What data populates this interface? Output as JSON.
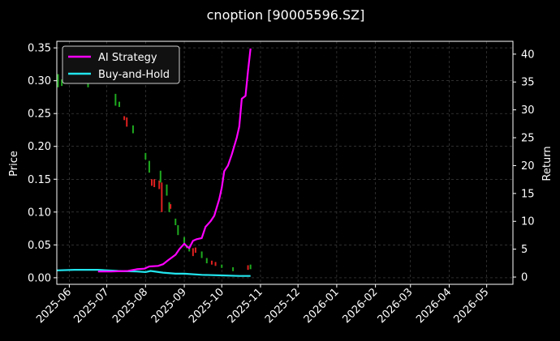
{
  "chart_data": {
    "type": "line",
    "title": "cnoption [90005596.SZ]",
    "ylabel_left": "Price",
    "ylabel_right": "Return",
    "xlim": [
      "2025-05-22",
      "2026-05-22"
    ],
    "ylim_left": [
      -0.01,
      0.36
    ],
    "ylim_right": [
      -1.3,
      42.3
    ],
    "grid": true,
    "legend_placement": "top-left",
    "x_ticks": [
      "2025-06",
      "2025-07",
      "2025-08",
      "2025-09",
      "2025-10",
      "2025-11",
      "2025-12",
      "2026-01",
      "2026-02",
      "2026-03",
      "2026-04",
      "2026-05"
    ],
    "y_ticks_left": [
      "0.00",
      "0.05",
      "0.10",
      "0.15",
      "0.20",
      "0.25",
      "0.30",
      "0.35"
    ],
    "y_ticks_right": [
      "0",
      "5",
      "10",
      "15",
      "20",
      "25",
      "30",
      "35",
      "40"
    ],
    "colors": {
      "background": "#000000",
      "ai_strategy": "#ff00ff",
      "buy_and_hold": "#22e5ee",
      "candle_up": "#1faa1f",
      "candle_down": "#e02020",
      "grid": "#4a4a4a"
    },
    "series": [
      {
        "name": "AI Strategy",
        "axis": "right",
        "points": [
          [
            "2025-06-24",
            1.0
          ],
          [
            "2025-07-04",
            1.0
          ],
          [
            "2025-07-18",
            1.1
          ],
          [
            "2025-07-25",
            1.4
          ],
          [
            "2025-07-31",
            1.5
          ],
          [
            "2025-08-04",
            1.9
          ],
          [
            "2025-08-11",
            2.0
          ],
          [
            "2025-08-15",
            2.3
          ],
          [
            "2025-08-19",
            3.0
          ],
          [
            "2025-08-25",
            4.0
          ],
          [
            "2025-08-28",
            5.0
          ],
          [
            "2025-09-01",
            6.0
          ],
          [
            "2025-09-03",
            5.5
          ],
          [
            "2025-09-05",
            5.2
          ],
          [
            "2025-09-08",
            6.5
          ],
          [
            "2025-09-11",
            6.8
          ],
          [
            "2025-09-15",
            7.0
          ],
          [
            "2025-09-18",
            9.0
          ],
          [
            "2025-09-22",
            10.0
          ],
          [
            "2025-09-25",
            11.0
          ],
          [
            "2025-09-29",
            14.0
          ],
          [
            "2025-10-01",
            16.0
          ],
          [
            "2025-10-03",
            19.0
          ],
          [
            "2025-10-06",
            20.0
          ],
          [
            "2025-10-09",
            22.0
          ],
          [
            "2025-10-13",
            25.0
          ],
          [
            "2025-10-15",
            27.0
          ],
          [
            "2025-10-17",
            32.0
          ],
          [
            "2025-10-20",
            32.5
          ],
          [
            "2025-10-22",
            37.0
          ],
          [
            "2025-10-24",
            41.0
          ]
        ]
      },
      {
        "name": "Buy-and-Hold",
        "axis": "right",
        "points": [
          [
            "2025-05-22",
            1.2
          ],
          [
            "2025-06-05",
            1.3
          ],
          [
            "2025-06-15",
            1.3
          ],
          [
            "2025-06-24",
            1.3
          ],
          [
            "2025-07-10",
            1.1
          ],
          [
            "2025-07-25",
            1.0
          ],
          [
            "2025-08-01",
            0.9
          ],
          [
            "2025-08-05",
            1.1
          ],
          [
            "2025-08-15",
            0.8
          ],
          [
            "2025-08-25",
            0.6
          ],
          [
            "2025-09-01",
            0.6
          ],
          [
            "2025-09-15",
            0.4
          ],
          [
            "2025-10-01",
            0.3
          ],
          [
            "2025-10-15",
            0.2
          ],
          [
            "2025-10-24",
            0.2
          ]
        ]
      }
    ],
    "candles": [
      {
        "date": "2025-05-23",
        "low": 0.29,
        "high": 0.31,
        "dir": "up"
      },
      {
        "date": "2025-05-26",
        "low": 0.292,
        "high": 0.302,
        "dir": "up"
      },
      {
        "date": "2025-06-16",
        "low": 0.29,
        "high": 0.296,
        "dir": "up"
      },
      {
        "date": "2025-07-08",
        "low": 0.262,
        "high": 0.28,
        "dir": "up"
      },
      {
        "date": "2025-07-11",
        "low": 0.26,
        "high": 0.268,
        "dir": "up"
      },
      {
        "date": "2025-07-15",
        "low": 0.24,
        "high": 0.246,
        "dir": "down"
      },
      {
        "date": "2025-07-17",
        "low": 0.23,
        "high": 0.244,
        "dir": "down"
      },
      {
        "date": "2025-07-22",
        "low": 0.22,
        "high": 0.232,
        "dir": "up"
      },
      {
        "date": "2025-08-01",
        "low": 0.18,
        "high": 0.19,
        "dir": "up"
      },
      {
        "date": "2025-08-04",
        "low": 0.16,
        "high": 0.178,
        "dir": "up"
      },
      {
        "date": "2025-08-06",
        "low": 0.14,
        "high": 0.15,
        "dir": "down"
      },
      {
        "date": "2025-08-08",
        "low": 0.138,
        "high": 0.15,
        "dir": "down"
      },
      {
        "date": "2025-08-12",
        "low": 0.135,
        "high": 0.148,
        "dir": "down"
      },
      {
        "date": "2025-08-13",
        "low": 0.145,
        "high": 0.163,
        "dir": "up"
      },
      {
        "date": "2025-08-14",
        "low": 0.1,
        "high": 0.145,
        "dir": "down"
      },
      {
        "date": "2025-08-18",
        "low": 0.125,
        "high": 0.142,
        "dir": "up"
      },
      {
        "date": "2025-08-20",
        "low": 0.1,
        "high": 0.115,
        "dir": "up"
      },
      {
        "date": "2025-08-21",
        "low": 0.105,
        "high": 0.112,
        "dir": "down"
      },
      {
        "date": "2025-08-25",
        "low": 0.08,
        "high": 0.09,
        "dir": "up"
      },
      {
        "date": "2025-08-27",
        "low": 0.065,
        "high": 0.08,
        "dir": "up"
      },
      {
        "date": "2025-09-01",
        "low": 0.05,
        "high": 0.062,
        "dir": "up"
      },
      {
        "date": "2025-09-03",
        "low": 0.045,
        "high": 0.05,
        "dir": "up"
      },
      {
        "date": "2025-09-05",
        "low": 0.04,
        "high": 0.048,
        "dir": "up"
      },
      {
        "date": "2025-09-08",
        "low": 0.033,
        "high": 0.045,
        "dir": "down"
      },
      {
        "date": "2025-09-10",
        "low": 0.038,
        "high": 0.046,
        "dir": "down"
      },
      {
        "date": "2025-09-15",
        "low": 0.03,
        "high": 0.04,
        "dir": "up"
      },
      {
        "date": "2025-09-19",
        "low": 0.022,
        "high": 0.03,
        "dir": "up"
      },
      {
        "date": "2025-09-23",
        "low": 0.02,
        "high": 0.026,
        "dir": "down"
      },
      {
        "date": "2025-09-26",
        "low": 0.018,
        "high": 0.024,
        "dir": "down"
      },
      {
        "date": "2025-10-01",
        "low": 0.015,
        "high": 0.02,
        "dir": "up"
      },
      {
        "date": "2025-10-10",
        "low": 0.01,
        "high": 0.016,
        "dir": "up"
      },
      {
        "date": "2025-10-22",
        "low": 0.012,
        "high": 0.019,
        "dir": "down"
      },
      {
        "date": "2025-10-24",
        "low": 0.013,
        "high": 0.02,
        "dir": "up"
      }
    ]
  }
}
